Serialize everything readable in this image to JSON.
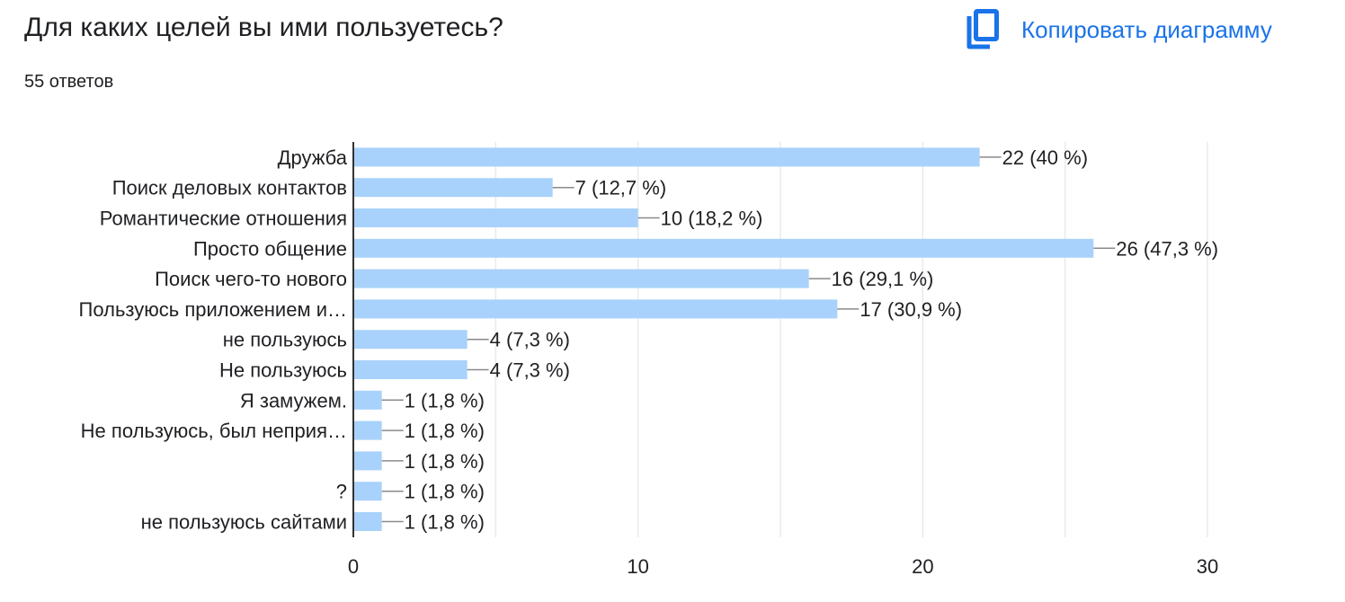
{
  "header": {
    "title": "Для каких целей вы ими пользуетесь?",
    "response_count": "55 ответов",
    "copy_label": "Копировать диаграмму"
  },
  "colors": {
    "bar": "#a8d2fb",
    "accent": "#1a73e8",
    "grid": "#e8eaed",
    "axis": "#333333",
    "leader": "#8a8a8a"
  },
  "icons": {
    "copy": "copy-icon"
  },
  "chart_data": {
    "type": "bar",
    "orientation": "horizontal",
    "categories": [
      "Дружба",
      "Поиск деловых контактов",
      "Романтические отношения",
      "Просто общение",
      "Поиск чего-то нового",
      "Пользуюсь приложением и…",
      "не пользуюсь",
      "Не пользуюсь",
      "Я замужем.",
      "Не пользуюсь, был неприя…",
      "",
      "?",
      "не пользуюсь сайтами"
    ],
    "values": [
      22,
      7,
      10,
      26,
      16,
      17,
      4,
      4,
      1,
      1,
      1,
      1,
      1
    ],
    "data_labels": [
      "22 (40 %)",
      "7 (12,7 %)",
      "10 (18,2 %)",
      "26 (47,3 %)",
      "16 (29,1 %)",
      "17 (30,9 %)",
      "4 (7,3 %)",
      "4 (7,3 %)",
      "1 (1,8 %)",
      "1 (1,8 %)",
      "1 (1,8 %)",
      "1 (1,8 %)",
      "1 (1,8 %)"
    ],
    "xlim": [
      0,
      30
    ],
    "xticks": [
      0,
      10,
      20,
      30
    ],
    "minor_grid_step": 5,
    "grid": true,
    "legend": "none"
  }
}
